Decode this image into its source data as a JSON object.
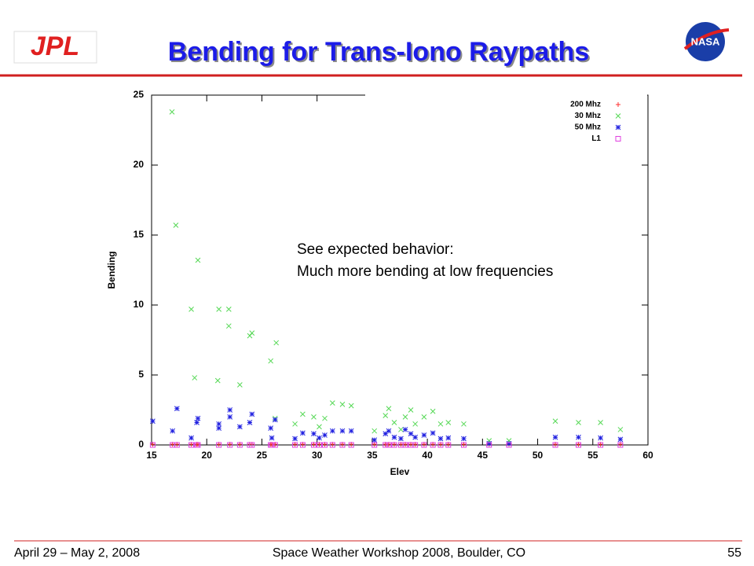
{
  "header": {
    "title": "Bending for Trans-Iono Raypaths",
    "left_logo": "JPL",
    "right_logo": "NASA"
  },
  "footer": {
    "date": "April 29 – May 2, 2008",
    "event": "Space Weather Workshop 2008, Boulder, CO",
    "page": "55"
  },
  "chart_data": {
    "type": "scatter",
    "xlabel": "Elev",
    "ylabel": "Bending",
    "annotations": [
      "See expected behavior:",
      "Much more bending at low frequencies"
    ],
    "xlim": [
      15,
      60
    ],
    "xticks": [
      15,
      20,
      25,
      30,
      35,
      40,
      45,
      50,
      55,
      60
    ],
    "ylim": [
      0,
      25
    ],
    "yticks": [
      0,
      5,
      10,
      15,
      20,
      25
    ],
    "legend": "top-right",
    "series": [
      {
        "name": "200 Mhz",
        "color": "#ff3030",
        "marker": "plus",
        "x": [
          15.1,
          16.9,
          17.3,
          18.6,
          19.1,
          19.2,
          21.1,
          22.1,
          23.0,
          23.9,
          24.1,
          25.8,
          25.9,
          26.2,
          28.0,
          28.7,
          29.7,
          30.2,
          30.7,
          31.4,
          32.3,
          33.1,
          35.2,
          36.2,
          36.5,
          37.0,
          37.6,
          38.0,
          38.5,
          38.9,
          39.7,
          40.5,
          41.2,
          41.9,
          43.3,
          45.6,
          47.4,
          51.6,
          53.7,
          55.7,
          57.5
        ],
        "values": [
          0.05,
          0.05,
          0.05,
          0.05,
          0.05,
          0.05,
          0.05,
          0.05,
          0.05,
          0.05,
          0.05,
          0.05,
          0.05,
          0.05,
          0.05,
          0.05,
          0.05,
          0.05,
          0.05,
          0.05,
          0.05,
          0.05,
          0.05,
          0.05,
          0.05,
          0.05,
          0.05,
          0.05,
          0.05,
          0.05,
          0.05,
          0.05,
          0.05,
          0.05,
          0.05,
          0.05,
          0.05,
          0.05,
          0.05,
          0.05,
          0.05
        ]
      },
      {
        "name": "30 Mhz",
        "color": "#55d855",
        "marker": "cross",
        "x": [
          16.85,
          17.2,
          18.6,
          19.2,
          18.9,
          21.1,
          22.0,
          22.0,
          21.0,
          23.0,
          23.9,
          24.1,
          26.3,
          25.8,
          26.2,
          28.0,
          28.7,
          29.7,
          30.2,
          30.7,
          31.4,
          32.3,
          33.1,
          35.2,
          36.2,
          36.5,
          37.0,
          37.6,
          38.0,
          38.5,
          38.9,
          39.7,
          40.5,
          41.2,
          41.9,
          43.3,
          45.6,
          47.4,
          51.6,
          53.7,
          55.7,
          57.5
        ],
        "values": [
          23.8,
          15.7,
          9.7,
          13.2,
          4.8,
          9.7,
          9.7,
          8.5,
          4.6,
          4.3,
          7.8,
          8.0,
          7.3,
          6.0,
          1.9,
          1.5,
          2.2,
          2.0,
          1.3,
          1.9,
          3.0,
          2.9,
          2.8,
          1.0,
          2.1,
          2.6,
          1.6,
          1.1,
          2.0,
          2.5,
          1.5,
          2.0,
          2.4,
          1.5,
          1.6,
          1.5,
          0.3,
          0.3,
          1.7,
          1.6,
          1.6,
          1.1
        ]
      },
      {
        "name": "50 Mhz",
        "color": "#2020e0",
        "marker": "star",
        "x": [
          15.1,
          16.9,
          17.3,
          18.6,
          19.1,
          19.2,
          21.1,
          21.1,
          22.1,
          22.1,
          23.0,
          23.9,
          24.1,
          25.8,
          25.9,
          26.2,
          28.0,
          28.7,
          29.7,
          30.2,
          30.7,
          31.4,
          32.3,
          33.1,
          35.2,
          36.2,
          36.5,
          37.0,
          37.6,
          38.0,
          38.5,
          38.9,
          39.7,
          40.5,
          41.2,
          41.9,
          43.3,
          45.6,
          47.4,
          51.6,
          53.7,
          55.7,
          57.5
        ],
        "values": [
          1.7,
          1.0,
          2.6,
          0.5,
          1.6,
          1.9,
          1.5,
          1.2,
          2.5,
          2.0,
          1.3,
          1.6,
          2.2,
          1.2,
          0.5,
          1.8,
          0.45,
          0.85,
          0.8,
          0.5,
          0.7,
          1.0,
          1.0,
          1.0,
          0.35,
          0.8,
          1.0,
          0.55,
          0.45,
          1.1,
          0.8,
          0.55,
          0.7,
          0.85,
          0.45,
          0.5,
          0.45,
          0.1,
          0.1,
          0.55,
          0.55,
          0.5,
          0.4
        ]
      },
      {
        "name": "L1",
        "color": "#e040e0",
        "marker": "square",
        "x": [
          15.1,
          16.9,
          17.3,
          18.6,
          19.1,
          19.2,
          21.1,
          22.1,
          23.0,
          23.9,
          24.1,
          25.8,
          25.9,
          26.2,
          28.0,
          28.7,
          29.7,
          30.2,
          30.7,
          31.4,
          32.3,
          33.1,
          35.2,
          36.2,
          36.5,
          37.0,
          37.6,
          38.0,
          38.5,
          38.9,
          39.7,
          40.5,
          41.2,
          41.9,
          43.3,
          45.6,
          47.4,
          51.6,
          53.7,
          55.7,
          57.5
        ],
        "values": [
          0,
          0,
          0,
          0,
          0,
          0,
          0,
          0,
          0,
          0,
          0,
          0,
          0,
          0,
          0,
          0,
          0,
          0,
          0,
          0,
          0,
          0,
          0,
          0,
          0,
          0,
          0,
          0,
          0,
          0,
          0,
          0,
          0,
          0,
          0,
          0,
          0,
          0,
          0,
          0,
          0
        ]
      }
    ]
  }
}
